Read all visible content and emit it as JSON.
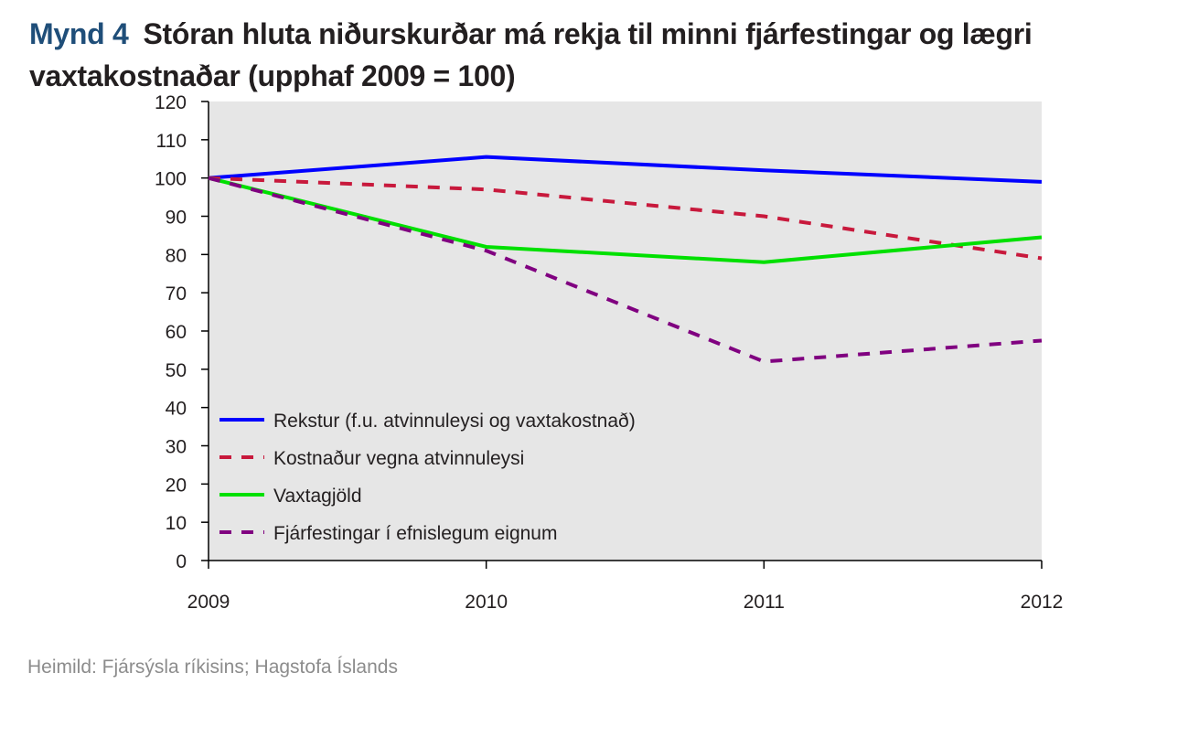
{
  "header": {
    "figure_number": "Mynd 4",
    "title": "Stóran hluta niðurskurðar má rekja til minni fjárfestingar og lægri vaxtakostnaðar (upphaf 2009 = 100)"
  },
  "source": "Heimild: Fjársýsla ríkisins; Hagstofa Íslands",
  "colors": {
    "plot_background": "#e6e6e6",
    "axis": "#000000"
  },
  "chart_data": {
    "type": "line",
    "title": "Stóran hluta niðurskurðar má rekja til minni fjárfestingar og lægri vaxtakostnaðar (upphaf 2009 = 100)",
    "x": [
      "2009",
      "2010",
      "2011",
      "2012"
    ],
    "xlabel": "",
    "ylabel": "",
    "ylim": [
      0,
      120
    ],
    "yticks": [
      0,
      10,
      20,
      30,
      40,
      50,
      60,
      70,
      80,
      90,
      100,
      110,
      120
    ],
    "grid": false,
    "legend_position": "bottom-left",
    "series": [
      {
        "name": "Rekstur (f.u. atvinnuleysi og vaxtakostnað)",
        "values": [
          100,
          105.5,
          102,
          99
        ],
        "color": "#0000ff",
        "dash": "solid"
      },
      {
        "name": "Kostnaður vegna atvinnuleysi",
        "values": [
          100,
          97,
          90,
          79
        ],
        "color": "#c8193c",
        "dash": "dashed"
      },
      {
        "name": "Vaxtagjöld",
        "values": [
          100,
          82,
          78,
          84.5
        ],
        "color": "#00e000",
        "dash": "solid"
      },
      {
        "name": "Fjárfestingar í efnislegum eignum",
        "values": [
          100,
          81,
          52,
          57.5
        ],
        "color": "#800080",
        "dash": "dashed"
      }
    ]
  }
}
